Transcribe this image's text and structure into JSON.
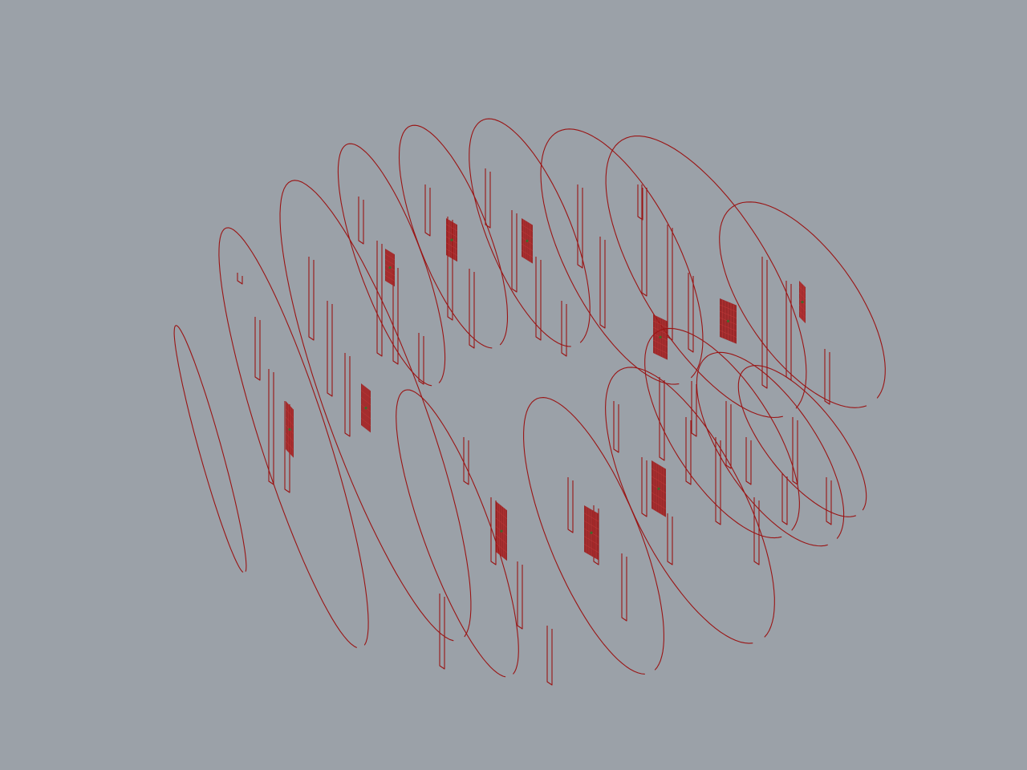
{
  "colors": {
    "background": "#9ba1a8",
    "wireframe": "#9a1414",
    "mesh_fill": "#9a1414",
    "mesh_grid": "#c23a3a",
    "mesh_accent": "#3f6b2a"
  },
  "scene": {
    "object_type": "wireframe-disc-array",
    "rows": 2,
    "discs_per_row": [
      9,
      6
    ],
    "disc_shape": "circle-with-slot",
    "mesh_patch": "gridded-quad"
  }
}
